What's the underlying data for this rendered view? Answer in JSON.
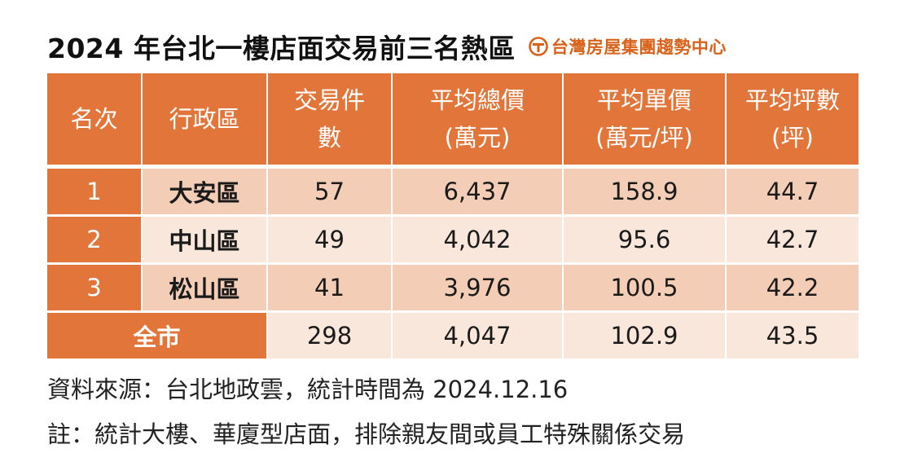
{
  "title": "2024 年台北一樓店面交易前三名熱區",
  "brand": {
    "name": "台灣房屋集團趨勢中心",
    "logo_icon": "taiwan-realty-logo-icon",
    "color": "#d9621b"
  },
  "colors": {
    "header_bg": "#e2763a",
    "row_dark": "#f3cdb5",
    "row_light": "#fae7db"
  },
  "table": {
    "headers": [
      {
        "lines": [
          "名次"
        ]
      },
      {
        "lines": [
          "行政區"
        ]
      },
      {
        "lines": [
          "交易件",
          "數"
        ]
      },
      {
        "lines": [
          "平均總價",
          "(萬元)"
        ]
      },
      {
        "lines": [
          "平均單價",
          "(萬元/坪)"
        ]
      },
      {
        "lines": [
          "平均坪數",
          "(坪)"
        ]
      }
    ],
    "rows": [
      {
        "rank": "1",
        "district": "大安區",
        "count": "57",
        "avg_total": "6,437",
        "avg_unit": "158.9",
        "avg_area": "44.7"
      },
      {
        "rank": "2",
        "district": "中山區",
        "count": "49",
        "avg_total": "4,042",
        "avg_unit": "95.6",
        "avg_area": "42.7"
      },
      {
        "rank": "3",
        "district": "松山區",
        "count": "41",
        "avg_total": "3,976",
        "avg_unit": "100.5",
        "avg_area": "42.2"
      }
    ],
    "total": {
      "label": "全市",
      "count": "298",
      "avg_total": "4,047",
      "avg_unit": "102.9",
      "avg_area": "43.5"
    }
  },
  "source_note": "資料來源：台北地政雲，統計時間為 2024.12.16",
  "remark_note": "註：統計大樓、華廈型店面，排除親友間或員工特殊關係交易"
}
